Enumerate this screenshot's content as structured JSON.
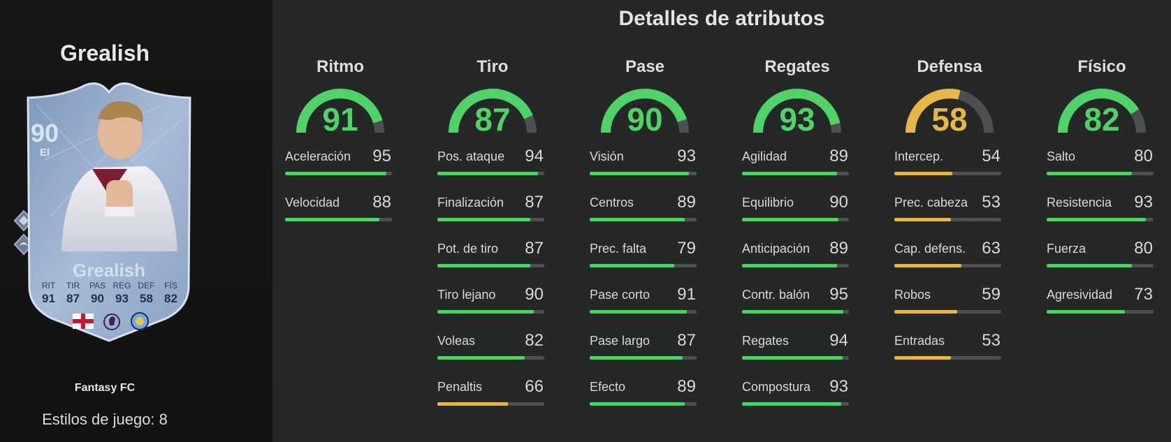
{
  "colors": {
    "high": "#4ed366",
    "mid": "#e6b743",
    "track": "#4e4f50"
  },
  "player": {
    "name": "Grealish",
    "card_name": "Grealish",
    "rating": "90",
    "position": "EI",
    "card_type": "Fantasy FC",
    "playstyles_label": "Estilos de juego: 8",
    "card_stats": [
      {
        "label": "RIT",
        "value": "91"
      },
      {
        "label": "TIR",
        "value": "87"
      },
      {
        "label": "PAS",
        "value": "90"
      },
      {
        "label": "REG",
        "value": "93"
      },
      {
        "label": "DEF",
        "value": "58"
      },
      {
        "label": "FÍS",
        "value": "82"
      }
    ],
    "icons": [
      "england-flag-icon",
      "premier-league-icon",
      "manchester-city-icon"
    ]
  },
  "main": {
    "title": "Detalles de atributos",
    "categories": [
      {
        "name": "Ritmo",
        "value": 91,
        "attributes": [
          {
            "name": "Aceleración",
            "value": 95
          },
          {
            "name": "Velocidad",
            "value": 88
          }
        ]
      },
      {
        "name": "Tiro",
        "value": 87,
        "attributes": [
          {
            "name": "Pos. ataque",
            "value": 94
          },
          {
            "name": "Finalización",
            "value": 87
          },
          {
            "name": "Pot. de tiro",
            "value": 87
          },
          {
            "name": "Tiro lejano",
            "value": 90
          },
          {
            "name": "Voleas",
            "value": 82
          },
          {
            "name": "Penaltis",
            "value": 66
          }
        ]
      },
      {
        "name": "Pase",
        "value": 90,
        "attributes": [
          {
            "name": "Visión",
            "value": 93
          },
          {
            "name": "Centros",
            "value": 89
          },
          {
            "name": "Prec. falta",
            "value": 79
          },
          {
            "name": "Pase corto",
            "value": 91
          },
          {
            "name": "Pase largo",
            "value": 87
          },
          {
            "name": "Efecto",
            "value": 89
          }
        ]
      },
      {
        "name": "Regates",
        "value": 93,
        "attributes": [
          {
            "name": "Agilidad",
            "value": 89
          },
          {
            "name": "Equilibrio",
            "value": 90
          },
          {
            "name": "Anticipación",
            "value": 89
          },
          {
            "name": "Contr. balón",
            "value": 95
          },
          {
            "name": "Regates",
            "value": 94
          },
          {
            "name": "Compostura",
            "value": 93
          }
        ]
      },
      {
        "name": "Defensa",
        "value": 58,
        "attributes": [
          {
            "name": "Intercep.",
            "value": 54
          },
          {
            "name": "Prec. cabeza",
            "value": 53
          },
          {
            "name": "Cap. defens.",
            "value": 63
          },
          {
            "name": "Robos",
            "value": 59
          },
          {
            "name": "Entradas",
            "value": 53
          }
        ]
      },
      {
        "name": "Físico",
        "value": 82,
        "attributes": [
          {
            "name": "Salto",
            "value": 80
          },
          {
            "name": "Resistencia",
            "value": 93
          },
          {
            "name": "Fuerza",
            "value": 80
          },
          {
            "name": "Agresividad",
            "value": 73
          }
        ]
      }
    ]
  }
}
